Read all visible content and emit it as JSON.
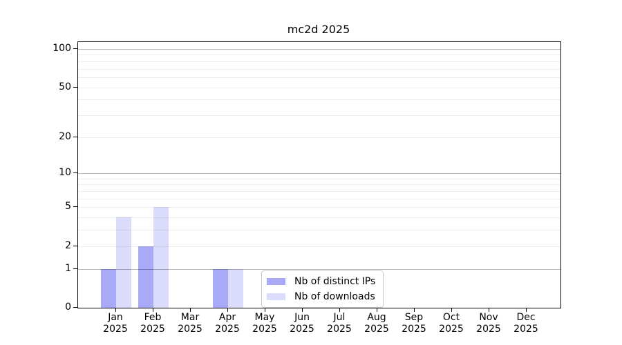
{
  "chart_data": {
    "type": "bar",
    "title": "mc2d 2025",
    "x": {
      "months": [
        "Jan",
        "Feb",
        "Mar",
        "Apr",
        "May",
        "Jun",
        "Jul",
        "Aug",
        "Sep",
        "Oct",
        "Nov",
        "Dec"
      ],
      "year": "2025"
    },
    "series": [
      {
        "name": "Nb of distinct IPs",
        "color": "#a9aaf7",
        "values": [
          1,
          2,
          0,
          1,
          0,
          0,
          0,
          0,
          0,
          0,
          0,
          0
        ]
      },
      {
        "name": "Nb of downloads",
        "color": "#dbdcfb",
        "values": [
          4,
          5,
          0,
          1,
          0,
          0,
          0,
          0,
          0,
          0,
          0,
          0
        ]
      }
    ],
    "yscale": "log1p",
    "ylim": [
      0,
      113
    ],
    "yticks": [
      0,
      1,
      2,
      5,
      10,
      20,
      50,
      100
    ],
    "major_gridlines": [
      1,
      10,
      100
    ],
    "minor_gridlines": [
      2,
      3,
      4,
      5,
      6,
      7,
      8,
      9,
      20,
      30,
      40,
      50,
      60,
      70,
      80,
      90
    ],
    "grid": true,
    "legend_position": "lower center, inside plot",
    "colors": {
      "major_grid": "rgba(0,0,0,0.28)",
      "minor_grid": "rgba(0,0,0,0.07)",
      "spine": "#000000",
      "text": "#000000",
      "background": "#ffffff"
    }
  }
}
